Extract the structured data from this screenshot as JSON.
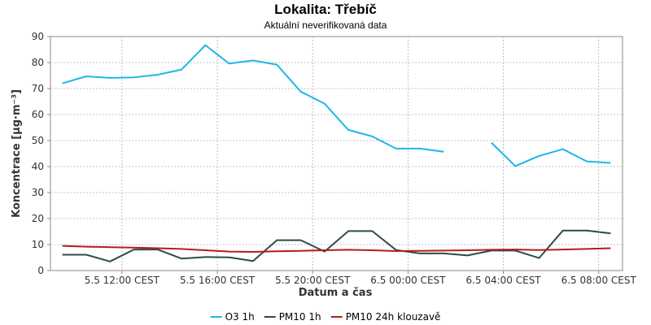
{
  "chart_data": {
    "type": "line",
    "title": "Lokalita: Třebíč",
    "subtitle": "Aktuální neverifikovaná data",
    "xlabel": "Datum a čas",
    "ylabel": "Koncentrace [µg·m⁻³]",
    "ylim": [
      0,
      90
    ],
    "yticks": [
      0,
      10,
      20,
      30,
      40,
      50,
      60,
      70,
      80,
      90
    ],
    "xlim": [
      "2015-06-05 09:00",
      "2015-06-06 09:00"
    ],
    "xticks": [
      {
        "x": "2015-06-05 12:00",
        "label": "5.5 12:00 CEST"
      },
      {
        "x": "2015-06-05 16:00",
        "label": "5.5 16:00 CEST"
      },
      {
        "x": "2015-06-05 20:00",
        "label": "5.5 20:00 CEST"
      },
      {
        "x": "2015-06-06 00:00",
        "label": "6.5 00:00 CEST"
      },
      {
        "x": "2015-06-06 04:00",
        "label": "6.5 04:00 CEST"
      },
      {
        "x": "2015-06-06 08:00",
        "label": "6.5 08:00 CEST"
      }
    ],
    "grid": true,
    "legend_position": "bottom",
    "x": [
      "2015-06-05 09:30",
      "2015-06-05 10:30",
      "2015-06-05 11:30",
      "2015-06-05 12:30",
      "2015-06-05 13:30",
      "2015-06-05 14:30",
      "2015-06-05 15:30",
      "2015-06-05 16:30",
      "2015-06-05 17:30",
      "2015-06-05 18:30",
      "2015-06-05 19:30",
      "2015-06-05 20:30",
      "2015-06-05 21:30",
      "2015-06-05 22:30",
      "2015-06-05 23:30",
      "2015-06-06 00:30",
      "2015-06-06 01:30",
      "2015-06-06 02:30",
      "2015-06-06 03:30",
      "2015-06-06 04:30",
      "2015-06-06 05:30",
      "2015-06-06 06:30",
      "2015-06-06 07:30",
      "2015-06-06 08:30"
    ],
    "series": [
      {
        "name": "O3 1h",
        "color": "#1fb6e8",
        "values": [
          72,
          74.7,
          74.1,
          74.3,
          75.3,
          77.3,
          86.7,
          79.6,
          80.8,
          79.2,
          68.8,
          64.2,
          54.1,
          51.6,
          46.9,
          46.9,
          45.7,
          null,
          49.2,
          40.2,
          44.1,
          46.7,
          42,
          41.4
        ]
      },
      {
        "name": "PM10 1h",
        "color": "#2e4b44",
        "values": [
          6.1,
          6.1,
          3.5,
          8.1,
          8.1,
          4.6,
          5.2,
          5.1,
          3.7,
          11.7,
          11.7,
          7.3,
          15.2,
          15.2,
          7.9,
          6.6,
          6.6,
          5.8,
          7.7,
          7.7,
          4.8,
          15.4,
          15.4,
          14.3
        ]
      },
      {
        "name": "PM10 24h klouzavě",
        "color": "#b31d1d",
        "values": [
          9.5,
          9.2,
          9,
          8.8,
          8.6,
          8.3,
          7.8,
          7.3,
          7.2,
          7.4,
          7.6,
          7.8,
          8,
          7.8,
          7.5,
          7.6,
          7.7,
          7.8,
          8,
          8.1,
          7.9,
          8.1,
          8.3,
          8.6
        ]
      }
    ]
  }
}
